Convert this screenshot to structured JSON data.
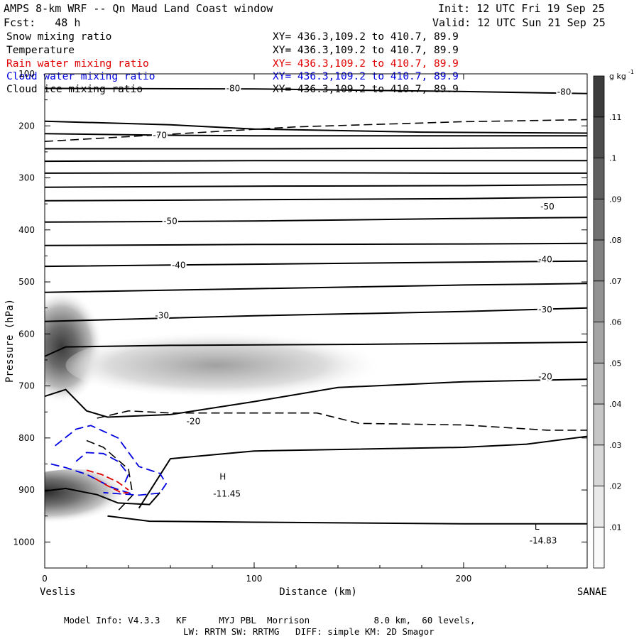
{
  "header": {
    "title": "AMPS 8-km WRF -- Qn Maud Land Coast window",
    "init": "Init: 12 UTC Fri 19 Sep 25",
    "fcst": "Fcst:   48 h",
    "valid": "Valid: 12 UTC Sun 21 Sep 25",
    "fields": [
      {
        "name": "Snow mixing ratio",
        "xy": "XY= 436.3,109.2 to 410.7, 89.9",
        "color": "#000000"
      },
      {
        "name": "Temperature",
        "xy": "XY= 436.3,109.2 to 410.7, 89.9",
        "color": "#000000"
      },
      {
        "name": "Rain water mixing ratio",
        "xy": "XY= 436.3,109.2 to 410.7, 89.9",
        "color": "#e00000"
      },
      {
        "name": "Cloud water mixing ratio",
        "xy": "XY= 436.3,109.2 to 410.7, 89.9",
        "color": "#0000e0"
      },
      {
        "name": "Cloud ice mixing ratio",
        "xy": "XY= 436.3,109.2 to 410.7, 89.9",
        "color": "#000000"
      }
    ]
  },
  "footer": {
    "line1": "Model Info: V4.3.3   KF      MYJ PBL  Morrison            8.0 km,  60 levels,",
    "line2": "LW: RRTM SW: RRTMG   DIFF: simple KM: 2D Smagor"
  },
  "chart_data": {
    "type": "contour",
    "xlabel": "Distance (km)",
    "ylabel": "Pressure (hPa)",
    "xlim": [
      0,
      259
    ],
    "ylim": [
      1050,
      100
    ],
    "x_ticks": [
      0,
      100,
      200
    ],
    "x_tick_labels": [
      "0",
      "100",
      "200"
    ],
    "y_ticks": [
      100,
      200,
      300,
      400,
      500,
      600,
      700,
      800,
      900,
      1000
    ],
    "y_tick_labels": [
      "100",
      "200",
      "300",
      "400",
      "500",
      "600",
      "700",
      "800",
      "900",
      "1000"
    ],
    "endpoint_left": "Veslis",
    "endpoint_right": "SANAE",
    "colorbar": {
      "unit_base": "g kg",
      "unit_exp": "-1",
      "levels": [
        0.01,
        0.02,
        0.03,
        0.04,
        0.05,
        0.06,
        0.07,
        0.08,
        0.09,
        0.1,
        0.11
      ],
      "labels": [
        ".01",
        ".02",
        ".03",
        ".04",
        ".05",
        ".06",
        ".07",
        ".08",
        ".09",
        ".1",
        ".11"
      ]
    },
    "temperature_contours": [
      {
        "points": [
          [
            0,
            128
          ],
          [
            100,
            129
          ],
          [
            200,
            134
          ],
          [
            259,
            138
          ]
        ]
      },
      {
        "points": [
          [
            0,
            191
          ],
          [
            60,
            198
          ],
          [
            100,
            206
          ],
          [
            180,
            212
          ],
          [
            259,
            214
          ]
        ]
      },
      {
        "points": [
          [
            0,
            215
          ],
          [
            60,
            218
          ],
          [
            100,
            219
          ],
          [
            200,
            219
          ],
          [
            259,
            219
          ]
        ]
      },
      {
        "points": [
          [
            0,
            244
          ],
          [
            100,
            244
          ],
          [
            200,
            243
          ],
          [
            259,
            242
          ]
        ]
      },
      {
        "points": [
          [
            0,
            268
          ],
          [
            100,
            267
          ],
          [
            200,
            267
          ],
          [
            259,
            267
          ]
        ]
      },
      {
        "points": [
          [
            0,
            291
          ],
          [
            100,
            290
          ],
          [
            200,
            291
          ],
          [
            259,
            291
          ]
        ]
      },
      {
        "points": [
          [
            0,
            318
          ],
          [
            100,
            316
          ],
          [
            200,
            315
          ],
          [
            259,
            313
          ]
        ]
      },
      {
        "points": [
          [
            0,
            344
          ],
          [
            100,
            342
          ],
          [
            200,
            340
          ],
          [
            259,
            337
          ]
        ]
      },
      {
        "points": [
          [
            0,
            385
          ],
          [
            100,
            383
          ],
          [
            200,
            378
          ],
          [
            259,
            376
          ]
        ]
      },
      {
        "points": [
          [
            0,
            430
          ],
          [
            100,
            428
          ],
          [
            200,
            427
          ],
          [
            259,
            426
          ]
        ]
      },
      {
        "points": [
          [
            0,
            470
          ],
          [
            100,
            466
          ],
          [
            200,
            462
          ],
          [
            259,
            460
          ]
        ]
      },
      {
        "points": [
          [
            0,
            520
          ],
          [
            100,
            513
          ],
          [
            200,
            506
          ],
          [
            259,
            503
          ]
        ]
      },
      {
        "points": [
          [
            0,
            576
          ],
          [
            100,
            565
          ],
          [
            200,
            557
          ],
          [
            259,
            550
          ]
        ]
      },
      {
        "points": [
          [
            0,
            643
          ],
          [
            10,
            625
          ],
          [
            60,
            622
          ],
          [
            150,
            620
          ],
          [
            259,
            616
          ]
        ]
      },
      {
        "points": [
          [
            0,
            720
          ],
          [
            10,
            707
          ],
          [
            20,
            748
          ],
          [
            30,
            760
          ],
          [
            60,
            755
          ],
          [
            100,
            730
          ],
          [
            140,
            703
          ],
          [
            200,
            692
          ],
          [
            259,
            687
          ]
        ]
      },
      {
        "points": [
          [
            0,
            902
          ],
          [
            10,
            897
          ],
          [
            25,
            909
          ],
          [
            35,
            925
          ],
          [
            50,
            928
          ],
          [
            55,
            905
          ]
        ]
      },
      {
        "points": [
          [
            30,
            950
          ],
          [
            50,
            960
          ],
          [
            100,
            962
          ],
          [
            200,
            965
          ],
          [
            259,
            965
          ]
        ]
      },
      {
        "points": [
          [
            45,
            935
          ],
          [
            60,
            840
          ],
          [
            100,
            825
          ],
          [
            200,
            818
          ],
          [
            230,
            812
          ],
          [
            259,
            797
          ]
        ]
      }
    ],
    "temperature_labels": [
      {
        "x": 90,
        "y": 128,
        "text": "-80"
      },
      {
        "x": 248,
        "y": 135,
        "text": "-80"
      },
      {
        "x": 55,
        "y": 218,
        "text": "-70"
      },
      {
        "x": 60,
        "y": 383,
        "text": "-50"
      },
      {
        "x": 240,
        "y": 355,
        "text": "-50"
      },
      {
        "x": 64,
        "y": 468,
        "text": "-40"
      },
      {
        "x": 239,
        "y": 457,
        "text": "-40"
      },
      {
        "x": 56,
        "y": 565,
        "text": "-30"
      },
      {
        "x": 239,
        "y": 553,
        "text": "-30"
      },
      {
        "x": 239,
        "y": 682,
        "text": "-20"
      },
      {
        "x": 71,
        "y": 768,
        "text": "-20"
      }
    ],
    "dashed_black_contours": [
      {
        "points": [
          [
            0,
            230
          ],
          [
            60,
            216
          ],
          [
            120,
            202
          ],
          [
            200,
            192
          ],
          [
            259,
            188
          ]
        ]
      },
      {
        "points": [
          [
            25,
            762
          ],
          [
            40,
            748
          ],
          [
            60,
            752
          ],
          [
            90,
            752
          ],
          [
            130,
            752
          ],
          [
            150,
            772
          ],
          [
            200,
            775
          ],
          [
            240,
            785
          ],
          [
            259,
            785
          ]
        ]
      },
      {
        "points": [
          [
            20,
            805
          ],
          [
            28,
            818
          ],
          [
            40,
            860
          ],
          [
            42,
            910
          ],
          [
            35,
            940
          ]
        ]
      }
    ],
    "blue_contours": [
      {
        "points": [
          [
            5,
            815
          ],
          [
            15,
            783
          ],
          [
            22,
            776
          ],
          [
            35,
            800
          ],
          [
            45,
            855
          ],
          [
            55,
            868
          ],
          [
            58,
            888
          ],
          [
            55,
            906
          ],
          [
            45,
            910
          ],
          [
            28,
            905
          ]
        ]
      },
      {
        "points": [
          [
            15,
            845
          ],
          [
            20,
            828
          ],
          [
            28,
            830
          ],
          [
            35,
            845
          ],
          [
            40,
            870
          ],
          [
            38,
            888
          ]
        ]
      },
      {
        "points": [
          [
            3,
            850
          ],
          [
            10,
            857
          ],
          [
            20,
            870
          ],
          [
            32,
            895
          ],
          [
            42,
            908
          ]
        ]
      }
    ],
    "red_contours": [
      {
        "points": [
          [
            20,
            862
          ],
          [
            27,
            870
          ],
          [
            35,
            885
          ],
          [
            40,
            900
          ]
        ]
      },
      {
        "points": [
          [
            24,
            878
          ],
          [
            30,
            892
          ],
          [
            37,
            906
          ],
          [
            40,
            905
          ]
        ]
      }
    ],
    "shaded_regions": [
      {
        "cx": 8,
        "cy": 625,
        "rx": 20,
        "ry": 110,
        "max": 0.11
      },
      {
        "cx": 90,
        "cy": 660,
        "rx": 80,
        "ry": 65,
        "max": 0.065
      },
      {
        "cx": 15,
        "cy": 915,
        "rx": 35,
        "ry": 55,
        "max": 0.11
      }
    ],
    "annotations": [
      {
        "x": 85,
        "y": 880,
        "text": "H"
      },
      {
        "x": 87,
        "y": 913,
        "text": "-11.45"
      },
      {
        "x": 235,
        "y": 976,
        "text": "L"
      },
      {
        "x": 238,
        "y": 1003,
        "text": "-14.83"
      }
    ]
  }
}
